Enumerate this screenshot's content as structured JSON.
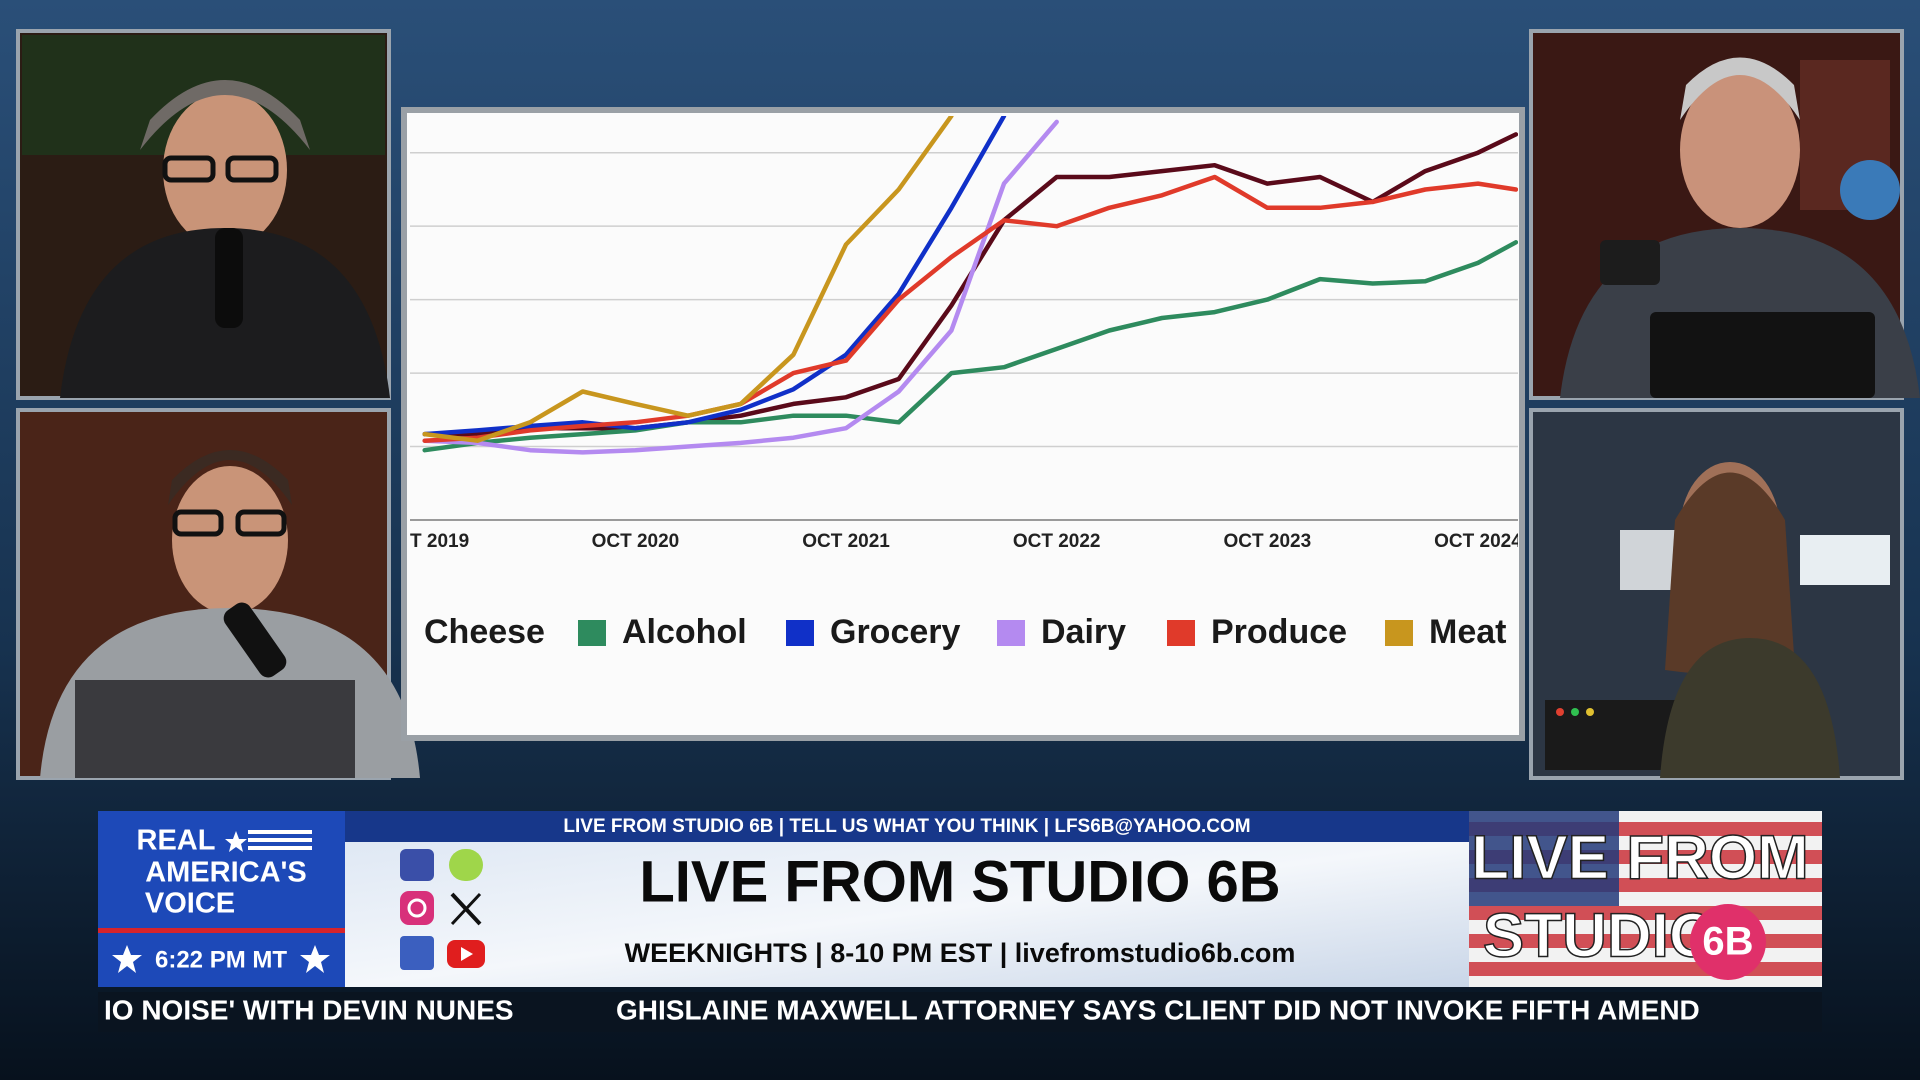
{
  "chart_data": {
    "type": "line",
    "x": [
      2019.75,
      2020.0,
      2020.25,
      2020.5,
      2020.75,
      2021.0,
      2021.25,
      2021.5,
      2021.75,
      2022.0,
      2022.25,
      2022.5,
      2022.75,
      2023.0,
      2023.25,
      2023.5,
      2023.75,
      2024.0,
      2024.25,
      2024.5,
      2024.75,
      2024.93
    ],
    "xlim": [
      2019.68,
      2024.94
    ],
    "xticks": [
      {
        "value": 2019.75,
        "label": "T 2019"
      },
      {
        "value": 2020.75,
        "label": "OCT 2020"
      },
      {
        "value": 2021.75,
        "label": "OCT 2021"
      },
      {
        "value": 2022.75,
        "label": "OCT 2022"
      },
      {
        "value": 2023.75,
        "label": "OCT 2023"
      },
      {
        "value": 2024.75,
        "label": "OCT 2024"
      }
    ],
    "ylim": [
      0,
      5.5
    ],
    "yticks": [
      0,
      1,
      2,
      3,
      4,
      5
    ],
    "grid": true,
    "series": [
      {
        "name": "Cheese",
        "color": "#5a0a1a",
        "values": [
          1.17,
          1.17,
          1.25,
          1.25,
          1.25,
          1.33,
          1.42,
          1.58,
          1.67,
          1.92,
          2.92,
          4.08,
          4.67,
          4.67,
          4.75,
          4.83,
          4.58,
          4.67,
          4.33,
          4.75,
          5.0,
          5.25
        ]
      },
      {
        "name": "Alcohol",
        "color": "#2e8b5e",
        "values": [
          0.95,
          1.05,
          1.12,
          1.17,
          1.22,
          1.33,
          1.33,
          1.42,
          1.42,
          1.33,
          2.0,
          2.08,
          2.33,
          2.58,
          2.75,
          2.83,
          3.0,
          3.28,
          3.22,
          3.25,
          3.5,
          3.78
        ]
      },
      {
        "name": "Grocery",
        "color": "#1030c8",
        "values": [
          1.17,
          1.22,
          1.28,
          1.33,
          1.25,
          1.33,
          1.5,
          1.78,
          2.25,
          3.08,
          4.25,
          5.5,
          null,
          null,
          null,
          null,
          null,
          null,
          null,
          null,
          null,
          null
        ]
      },
      {
        "name": "Dairy",
        "color": "#b48af0",
        "values": [
          1.08,
          1.05,
          0.95,
          0.92,
          0.95,
          1.0,
          1.05,
          1.12,
          1.25,
          1.75,
          2.58,
          4.58,
          5.42,
          null,
          null,
          null,
          null,
          null,
          null,
          null,
          null,
          null
        ]
      },
      {
        "name": "Produce",
        "color": "#e03a2a",
        "values": [
          1.08,
          1.12,
          1.22,
          1.28,
          1.33,
          1.42,
          1.58,
          2.0,
          2.17,
          3.0,
          3.58,
          4.08,
          4.0,
          4.25,
          4.42,
          4.67,
          4.25,
          4.25,
          4.33,
          4.5,
          4.58,
          4.5
        ]
      },
      {
        "name": "Meat",
        "color": "#c8961e",
        "values": [
          1.17,
          1.08,
          1.33,
          1.75,
          1.58,
          1.42,
          1.58,
          2.25,
          3.75,
          4.5,
          5.5,
          null,
          null,
          null,
          null,
          null,
          null,
          null,
          null,
          null,
          null,
          null
        ]
      }
    ]
  },
  "broadcast": {
    "network_logo": [
      "REAL",
      "AMERICA'S",
      "VOICE"
    ],
    "clock": "6:22 PM MT",
    "info_strip": "LIVE FROM STUDIO 6B | TELL US WHAT YOU THINK | LFS6B@YAHOO.COM",
    "show_title": "LIVE FROM STUDIO 6B",
    "schedule": "WEEKNIGHTS | 8-10 PM EST | livefromstudio6b.com",
    "show_logo": [
      "LIVE FROM",
      "STUDIO",
      "6B"
    ],
    "ticker": [
      "IO NOISE' WITH DEVIN NUNES",
      "GHISLAINE MAXWELL ATTORNEY SAYS CLIENT DID NOT INVOKE FIFTH AMEND"
    ]
  }
}
